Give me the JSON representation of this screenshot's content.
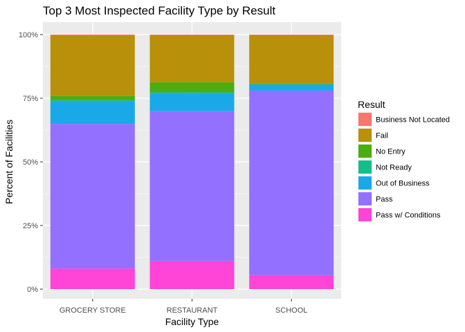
{
  "chart_data": {
    "type": "bar",
    "stacked": true,
    "title": "Top 3 Most Inspected Facility Type by Result",
    "xlabel": "Facility Type",
    "ylabel": "Percent of Facilities",
    "ylim": [
      0,
      1
    ],
    "y_ticks": [
      0,
      0.25,
      0.5,
      0.75,
      1.0
    ],
    "y_tick_labels": [
      "0%",
      "25%",
      "50%",
      "75%",
      "100%"
    ],
    "categories": [
      "GROCERY STORE",
      "RESTAURANT",
      "SCHOOL"
    ],
    "legend_title": "Result",
    "legend_position": "right",
    "grid": true,
    "series": [
      {
        "name": "Business Not Located",
        "color": "#F8766D",
        "values": [
          0.003,
          0.002,
          0.002
        ]
      },
      {
        "name": "Fail",
        "color": "#B79F00",
        "values": [
          0.238,
          0.185,
          0.19
        ]
      },
      {
        "name": "No Entry",
        "color": "#00BA38",
        "values": [
          0.016,
          0.04,
          0.003
        ]
      },
      {
        "name": "Not Ready",
        "color": "#00BF7D",
        "values": [
          0.004,
          0.002,
          0.002
        ]
      },
      {
        "name": "Out of Business",
        "color": "#00B0F6",
        "values": [
          0.09,
          0.072,
          0.023
        ]
      },
      {
        "name": "Pass",
        "color": "#9590FF",
        "values": [
          0.568,
          0.59,
          0.725
        ]
      },
      {
        "name": "Pass w/ Conditions",
        "color": "#F564E3",
        "values": [
          0.081,
          0.109,
          0.055
        ]
      }
    ],
    "draw_colors": {
      "Business Not Located": "#F8766D",
      "Fail": "#B8900A",
      "No Entry": "#4CAE0E",
      "Not Ready": "#14BE8A",
      "Out of Business": "#1AA9E8",
      "Pass": "#9370FF",
      "Pass w/ Conditions": "#FF44D8"
    },
    "panel_background": "#EBEBEB"
  }
}
